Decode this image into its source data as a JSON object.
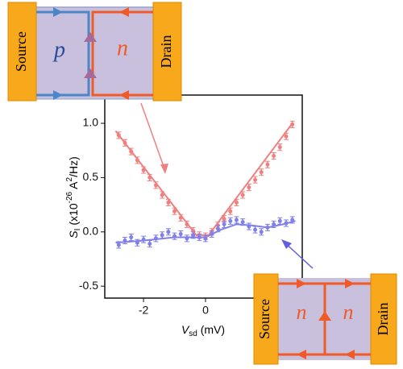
{
  "chart_data": {
    "type": "errorbar",
    "ylabel": {
      "symbol": "S",
      "sub": "I",
      "pre": "(x10",
      "exp": "-26",
      "unit": " A",
      "exp2": "2",
      "post": "/Hz)"
    },
    "xlabel": {
      "symbol": "V",
      "sub": "sd",
      "post": " (mV)"
    },
    "xlim": [
      -3.25,
      3.12
    ],
    "ylim": [
      -0.61,
      1.26
    ],
    "xticks": [
      -2,
      0
    ],
    "yticks": [
      {
        "value": 1,
        "label": "1.0"
      },
      {
        "value": 0.5,
        "label": "0.5"
      },
      {
        "value": 0,
        "label": "0.0"
      },
      -0.5
    ],
    "x": [
      -2.8,
      -2.6,
      -2.4,
      -2.2,
      -2.0,
      -1.8,
      -1.6,
      -1.4,
      -1.2,
      -1.0,
      -0.8,
      -0.6,
      -0.4,
      -0.2,
      0,
      0.2,
      0.4,
      0.6,
      0.8,
      1.0,
      1.2,
      1.4,
      1.6,
      1.8,
      2.0,
      2.2,
      2.4,
      2.6,
      2.8
    ],
    "series": [
      {
        "color": "#f08080",
        "values": [
          0.89,
          0.82,
          0.74,
          0.66,
          0.57,
          0.5,
          0.43,
          0.34,
          0.27,
          0.19,
          0.13,
          0.07,
          0.01,
          -0.03,
          -0.04,
          0.0,
          0.06,
          0.12,
          0.19,
          0.27,
          0.34,
          0.41,
          0.48,
          0.55,
          0.62,
          0.7,
          0.78,
          0.88,
          0.99
        ],
        "errors": [
          0.03,
          0.03,
          0.03,
          0.03,
          0.03,
          0.03,
          0.03,
          0.03,
          0.03,
          0.03,
          0.03,
          0.03,
          0.03,
          0.03,
          0.03,
          0.03,
          0.03,
          0.03,
          0.03,
          0.03,
          0.03,
          0.03,
          0.03,
          0.03,
          0.03,
          0.03,
          0.03,
          0.03,
          0.03
        ]
      },
      {
        "color": "#8080e8",
        "values": [
          -0.12,
          -0.08,
          -0.05,
          -0.1,
          -0.07,
          -0.11,
          -0.06,
          -0.03,
          0.0,
          -0.04,
          -0.02,
          -0.06,
          -0.03,
          -0.05,
          -0.06,
          -0.02,
          0.03,
          0.07,
          0.1,
          0.11,
          0.09,
          0.05,
          0.02,
          0.0,
          0.04,
          0.07,
          0.1,
          0.08,
          0.11
        ],
        "errors": [
          0.03,
          0.03,
          0.03,
          0.03,
          0.03,
          0.03,
          0.03,
          0.03,
          0.03,
          0.03,
          0.03,
          0.03,
          0.03,
          0.03,
          0.03,
          0.03,
          0.03,
          0.03,
          0.03,
          0.03,
          0.03,
          0.03,
          0.03,
          0.03,
          0.03,
          0.03,
          0.03,
          0.03,
          0.03
        ]
      }
    ],
    "fits": [
      {
        "color": "#f08080",
        "x": [
          -2.9,
          -0.3,
          0.1,
          2.8
        ],
        "values": [
          0.93,
          -0.03,
          -0.03,
          1.0
        ]
      },
      {
        "color": "#8080e8",
        "x": [
          -2.9,
          -2,
          -1,
          0,
          0.5,
          1,
          1.5,
          2,
          2.5,
          2.9
        ],
        "values": [
          -0.1,
          -0.08,
          -0.05,
          -0.05,
          0.02,
          0.07,
          0.06,
          0.04,
          0.07,
          0.1
        ]
      }
    ]
  },
  "insets": [
    {
      "source": "Source",
      "left": "p",
      "right": "n",
      "drain": "Drain"
    },
    {
      "source": "Source",
      "left": "n",
      "right": "n",
      "drain": "Drain"
    }
  ]
}
